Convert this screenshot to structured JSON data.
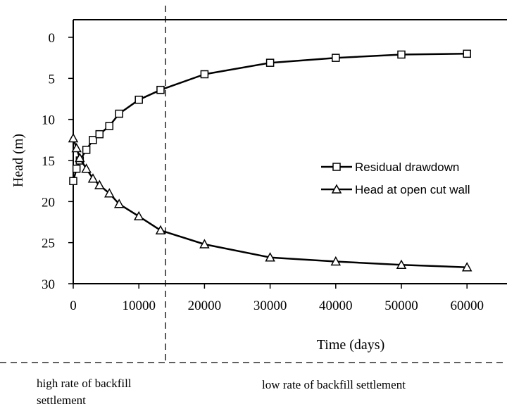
{
  "chart_data": {
    "type": "line",
    "xlabel": "Time (days)",
    "ylabel": "Head (m)",
    "xlim": [
      0,
      62000
    ],
    "ylim": [
      0,
      30
    ],
    "y_inverted": true,
    "x_ticks": [
      0,
      10000,
      20000,
      30000,
      40000,
      50000,
      60000
    ],
    "y_ticks": [
      0,
      5,
      10,
      15,
      20,
      25,
      30
    ],
    "grid": false,
    "legend_position": "middle-right",
    "series": [
      {
        "name": "Residual drawdown",
        "marker": "square",
        "x": [
          0,
          500,
          1000,
          2000,
          3000,
          4000,
          5500,
          7000,
          10000,
          13300,
          20000,
          30000,
          40000,
          50000,
          60000
        ],
        "y": [
          17.5,
          16.0,
          15.0,
          13.7,
          12.5,
          11.8,
          10.8,
          9.3,
          7.6,
          6.4,
          4.5,
          3.1,
          2.5,
          2.1,
          2.0
        ]
      },
      {
        "name": "Head at open cut wall",
        "marker": "triangle",
        "x": [
          0,
          500,
          1000,
          2000,
          3000,
          4000,
          5500,
          7000,
          10000,
          13300,
          20000,
          30000,
          40000,
          50000,
          60000
        ],
        "y": [
          12.3,
          13.5,
          14.7,
          16.0,
          17.2,
          18.0,
          19.0,
          20.3,
          21.8,
          23.5,
          25.2,
          26.8,
          27.3,
          27.7,
          28.0
        ]
      }
    ],
    "annotations": {
      "divider_x": 13300,
      "left_region": "high rate of backfill settlement",
      "right_region": "low rate of backfill settlement"
    }
  }
}
